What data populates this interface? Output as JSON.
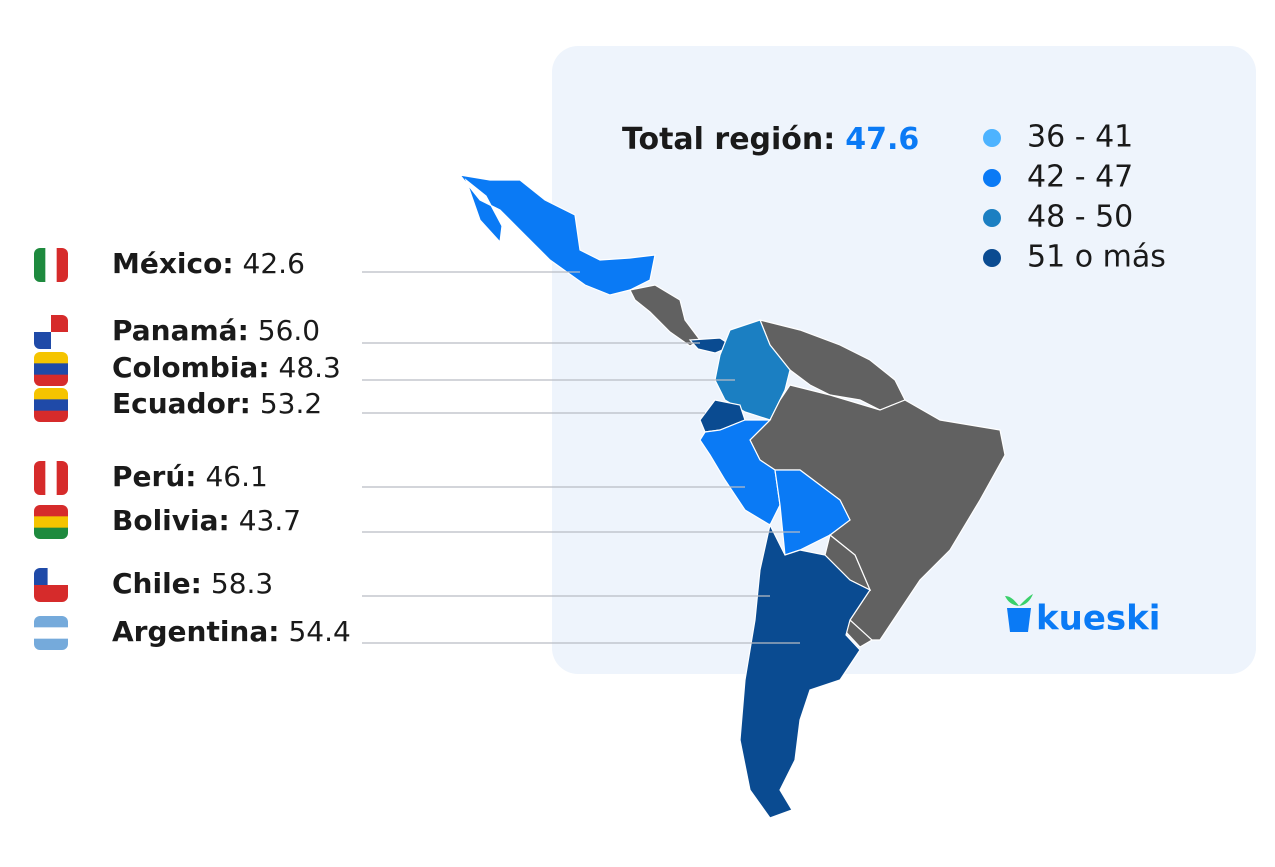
{
  "summary": {
    "label": "Total región:",
    "value": "47.6",
    "value_color": "#0a7af5"
  },
  "legend": [
    {
      "label": "36 - 41",
      "color": "#4db3ff"
    },
    {
      "label": "42 - 47",
      "color": "#0a7af5"
    },
    {
      "label": "48 - 50",
      "color": "#1b7fc2"
    },
    {
      "label": "51 o más",
      "color": "#0a4b91"
    }
  ],
  "countries": [
    {
      "name": "México:",
      "value": "42.6"
    },
    {
      "name": "Panamá:",
      "value": "56.0"
    },
    {
      "name": "Colombia:",
      "value": "48.3"
    },
    {
      "name": "Ecuador:",
      "value": "53.2"
    },
    {
      "name": "Perú:",
      "value": "46.1"
    },
    {
      "name": "Bolivia:",
      "value": "43.7"
    },
    {
      "name": "Chile:",
      "value": "58.3"
    },
    {
      "name": "Argentina:",
      "value": "54.4"
    }
  ],
  "brand": "kueski"
}
